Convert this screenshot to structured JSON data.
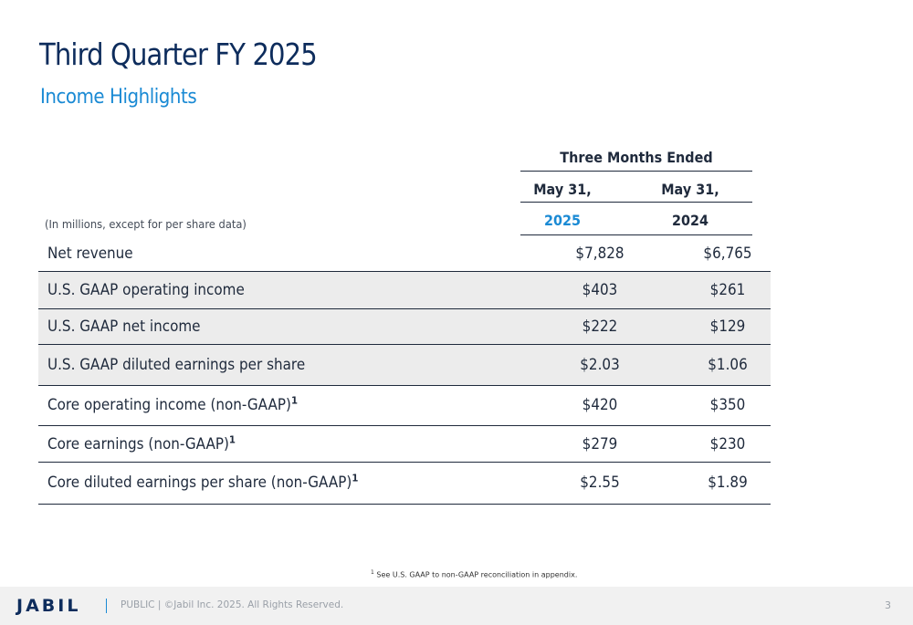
{
  "title": "Third Quarter FY 2025",
  "subtitle": "Income Highlights",
  "table": {
    "group_header": "Three Months Ended",
    "col_month": [
      "May 31,",
      "May 31,"
    ],
    "col_year": [
      "2025",
      "2024"
    ],
    "units_note": "(In millions, except for per share data)",
    "rows": [
      {
        "label": "Net revenue",
        "sup": "",
        "v1": "$7,828",
        "v2": "$6,765"
      },
      {
        "label": "U.S. GAAP operating income",
        "sup": "",
        "v1": "$403",
        "v2": "$261"
      },
      {
        "label": "U.S. GAAP net income",
        "sup": "",
        "v1": "$222",
        "v2": "$129"
      },
      {
        "label": "U.S. GAAP diluted earnings per share",
        "sup": "",
        "v1": "$2.03",
        "v2": "$1.06"
      },
      {
        "label": "Core operating income (non-GAAP)",
        "sup": "1",
        "v1": "$420",
        "v2": "$350"
      },
      {
        "label": "Core earnings (non-GAAP)",
        "sup": "1",
        "v1": "$279",
        "v2": "$230"
      },
      {
        "label": "Core diluted earnings per share (non-GAAP)",
        "sup": "1",
        "v1": "$2.55",
        "v2": "$1.89"
      }
    ]
  },
  "footnote": {
    "mark": "1",
    "text": " See U.S. GAAP to non-GAAP reconciliation in appendix."
  },
  "footer": {
    "logo": "JABIL",
    "text": "PUBLIC  |  ©Jabil Inc. 2025. All Rights Reserved.",
    "page": "3"
  },
  "colors": {
    "navy": "#0d2c5c",
    "accent_blue": "#1a8ad4",
    "shade": "#ececec"
  }
}
